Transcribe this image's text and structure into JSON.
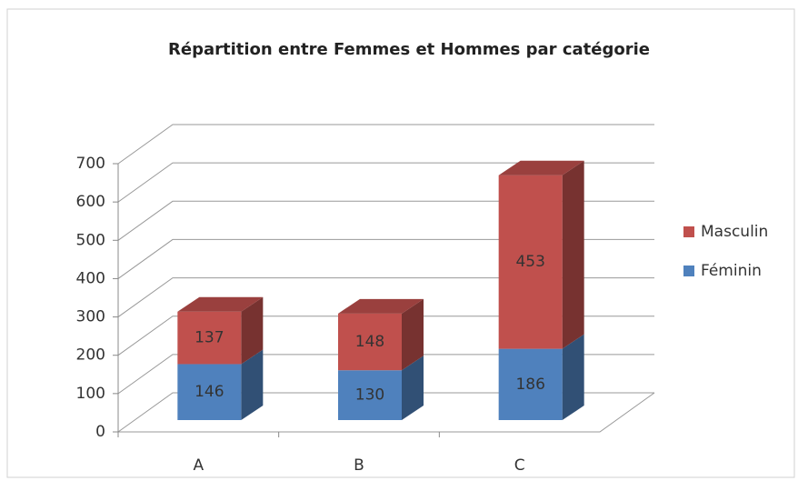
{
  "chart_data": {
    "type": "bar3d_stacked",
    "title": "Répartition entre Femmes et Hommes par catégorie",
    "categories": [
      "A",
      "B",
      "C"
    ],
    "series": [
      {
        "name": "Féminin",
        "color": "#4f81bd",
        "values": [
          146,
          130,
          186
        ]
      },
      {
        "name": "Masculin",
        "color": "#c0504d",
        "values": [
          137,
          148,
          453
        ]
      }
    ],
    "ylim": [
      0,
      700
    ],
    "yticks": [
      0,
      100,
      200,
      300,
      400,
      500,
      600,
      700
    ],
    "grid": true,
    "legend": "right"
  }
}
